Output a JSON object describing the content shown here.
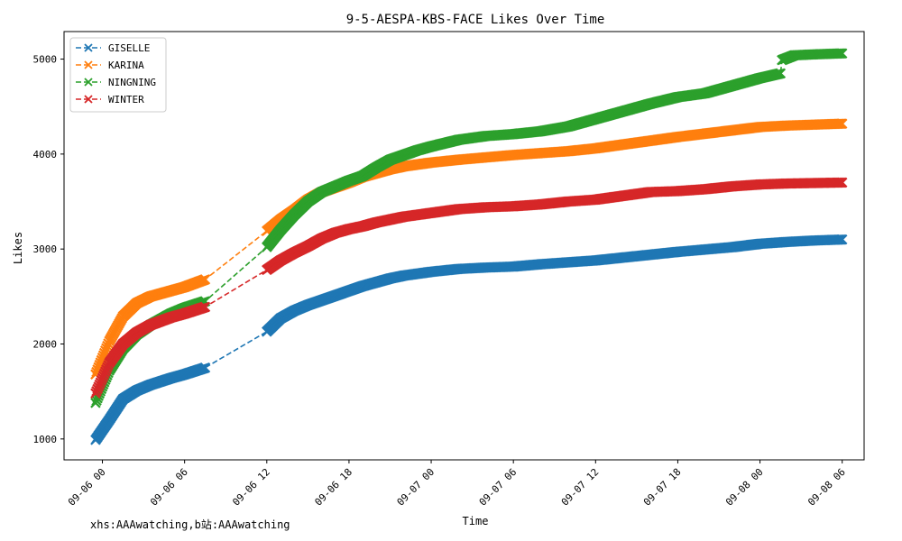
{
  "chart_data": {
    "type": "line",
    "title": "9-5-AESPA-KBS-FACE Likes Over Time",
    "xlabel": "Time",
    "ylabel": "Likes",
    "x_ticks": [
      "09-06 00",
      "09-06 06",
      "09-06 12",
      "09-06 18",
      "09-07 00",
      "09-07 06",
      "09-07 12",
      "09-07 18",
      "09-08 00",
      "09-08 06"
    ],
    "x_tick_hours": [
      0,
      6,
      12,
      18,
      24,
      30,
      36,
      42,
      48,
      54
    ],
    "xlim_hours": [
      -2.8,
      55.6
    ],
    "x_unit": "hours from 09-06 00",
    "y_ticks": [
      1000,
      2000,
      3000,
      4000,
      5000
    ],
    "ylim": [
      780,
      5290
    ],
    "grid": false,
    "legend_position": "top-left",
    "marker": "x",
    "line_style": "dashed",
    "series": [
      {
        "name": "GISELLE",
        "color": "#1f77b4",
        "x": [
          -0.5,
          0.5,
          1.5,
          2.5,
          3.5,
          5,
          6,
          7.5,
          12,
          13,
          14,
          15,
          16,
          17,
          18,
          19,
          20,
          21,
          22,
          23,
          24,
          26,
          28,
          30,
          32,
          34,
          36,
          38,
          40,
          42,
          44,
          46,
          48,
          50,
          52,
          54
        ],
        "values": [
          990,
          1200,
          1420,
          1510,
          1570,
          1640,
          1680,
          1750,
          2130,
          2270,
          2350,
          2410,
          2460,
          2510,
          2560,
          2610,
          2650,
          2690,
          2720,
          2740,
          2760,
          2790,
          2805,
          2815,
          2840,
          2860,
          2880,
          2910,
          2940,
          2970,
          2995,
          3020,
          3055,
          3075,
          3090,
          3100
        ]
      },
      {
        "name": "KARINA",
        "color": "#ff7f0e",
        "x": [
          -0.5,
          0.5,
          1.5,
          2.5,
          3.5,
          5,
          6,
          7.5,
          12,
          13,
          14,
          15,
          16,
          17,
          18,
          19,
          20,
          21,
          22,
          23,
          24,
          26,
          28,
          30,
          32,
          34,
          36,
          38,
          40,
          42,
          44,
          46,
          48,
          50,
          52,
          54
        ],
        "values": [
          1680,
          2030,
          2290,
          2430,
          2500,
          2560,
          2600,
          2680,
          3190,
          3310,
          3410,
          3520,
          3600,
          3650,
          3700,
          3760,
          3800,
          3840,
          3870,
          3890,
          3910,
          3940,
          3965,
          3990,
          4010,
          4030,
          4060,
          4100,
          4140,
          4180,
          4215,
          4250,
          4285,
          4300,
          4310,
          4320
        ]
      },
      {
        "name": "NINGNING",
        "color": "#2ca02c",
        "x": [
          -0.5,
          0.5,
          1.5,
          2.5,
          3.5,
          5,
          6,
          7.5,
          12,
          13,
          14,
          15,
          16,
          17,
          18,
          19,
          20,
          21,
          22,
          23,
          24,
          26,
          28,
          30,
          32,
          34,
          36,
          38,
          40,
          42,
          44,
          46,
          48,
          49.5,
          49.6,
          50.5,
          52,
          54
        ],
        "values": [
          1380,
          1720,
          1950,
          2100,
          2200,
          2320,
          2380,
          2450,
          3020,
          3200,
          3360,
          3500,
          3600,
          3660,
          3720,
          3770,
          3860,
          3940,
          3990,
          4040,
          4080,
          4150,
          4190,
          4210,
          4240,
          4290,
          4370,
          4450,
          4530,
          4600,
          4640,
          4720,
          4800,
          4850,
          4990,
          5040,
          5050,
          5060
        ]
      },
      {
        "name": "WINTER",
        "color": "#d62728",
        "x": [
          -0.5,
          0.5,
          1.5,
          2.5,
          3.5,
          5,
          6,
          7.5,
          12,
          13,
          14,
          15,
          16,
          17,
          18,
          19,
          20,
          21,
          22,
          23,
          24,
          26,
          28,
          30,
          32,
          34,
          36,
          38,
          40,
          42,
          44,
          46,
          48,
          50,
          52,
          54
        ],
        "values": [
          1480,
          1800,
          2000,
          2120,
          2200,
          2280,
          2320,
          2390,
          2780,
          2880,
          2960,
          3030,
          3110,
          3170,
          3210,
          3240,
          3280,
          3310,
          3340,
          3360,
          3380,
          3420,
          3440,
          3450,
          3470,
          3500,
          3520,
          3560,
          3600,
          3610,
          3630,
          3660,
          3680,
          3690,
          3695,
          3700
        ]
      }
    ]
  },
  "footnote": "xhs:AAAwatching,b站:AAAwatching"
}
